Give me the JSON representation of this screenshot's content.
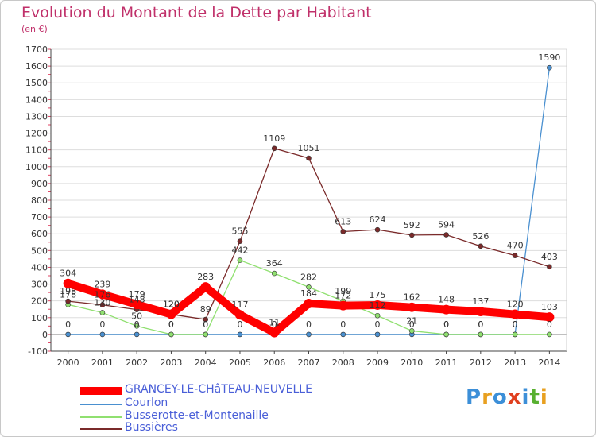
{
  "header": {
    "title": "Evolution du Montant de la Dette par Habitant",
    "unit": "(en €)"
  },
  "brand": {
    "text": "Proxiti",
    "colors": [
      "#3c8fd8",
      "#e8a020",
      "#3c8fd8",
      "#e04020",
      "#3c8fd8",
      "#58b030",
      "#e8a020"
    ]
  },
  "chart_data": {
    "type": "line",
    "title": "Evolution du Montant de la Dette par Habitant",
    "subtitle": "(en €)",
    "xlabel": "",
    "ylabel": "",
    "x": [
      "2000",
      "2001",
      "2002",
      "2003",
      "2004",
      "2005",
      "2006",
      "2007",
      "2008",
      "2009",
      "2010",
      "2011",
      "2012",
      "2013",
      "2014"
    ],
    "ylim": [
      -100,
      1700
    ],
    "yticks": [
      -100,
      0,
      100,
      200,
      300,
      400,
      500,
      600,
      700,
      800,
      900,
      1000,
      1100,
      1200,
      1300,
      1400,
      1500,
      1600,
      1700
    ],
    "grid": "horizontal",
    "legend": "bottom-left",
    "series": [
      {
        "name": "GRANCEY-LE-CHâTEAU-NEUVELLE",
        "color": "#ff0000",
        "values": [
          304,
          239,
          179,
          120,
          283,
          117,
          11,
          184,
          172,
          175,
          162,
          148,
          137,
          120,
          103
        ],
        "labels": [
          "304",
          "239",
          "179",
          "120",
          "283",
          "117",
          "11",
          "184",
          "172",
          "175",
          "162",
          "148",
          "137",
          "120",
          "103"
        ]
      },
      {
        "name": "Courlon",
        "color": "#4a90d0",
        "values": [
          0,
          0,
          0,
          0,
          0,
          0,
          0,
          0,
          0,
          0,
          0,
          0,
          0,
          0,
          1590
        ],
        "labels": [
          "0",
          "0",
          "0",
          "0",
          "0",
          "0",
          "0",
          "0",
          "0",
          "0",
          "0",
          "0",
          "0",
          "0",
          "1590"
        ]
      },
      {
        "name": "Busserotte-et-Montenaille",
        "color": "#90e070",
        "values": [
          178,
          130,
          50,
          0,
          0,
          442,
          364,
          282,
          199,
          112,
          21,
          0,
          0,
          0,
          0
        ],
        "labels": [
          "178",
          "130",
          "50",
          "0",
          "0",
          "442",
          "364",
          "282",
          "199",
          "112",
          "21",
          "0",
          "0",
          "0",
          "0"
        ]
      },
      {
        "name": "Bussières",
        "color": "#7a2a2a",
        "values": [
          198,
          176,
          148,
          120,
          89,
          555,
          1109,
          1051,
          613,
          624,
          592,
          594,
          526,
          470,
          403
        ],
        "labels": [
          "198",
          "176",
          "148",
          "120",
          "89",
          "555",
          "1109",
          "1051",
          "613",
          "624",
          "592",
          "594",
          "526",
          "470",
          "403"
        ]
      }
    ]
  }
}
